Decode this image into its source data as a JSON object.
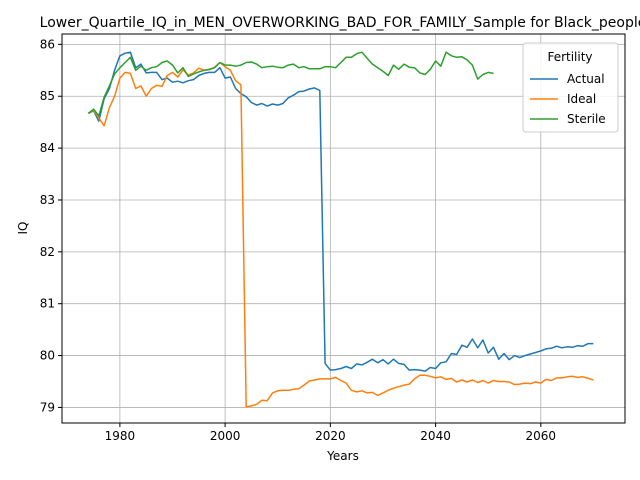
{
  "chart_data": {
    "type": "line",
    "title": "Lower_Quartile_IQ_in_MEN_OVERWORKING_BAD_FOR_FAMILY_Sample for Black_people",
    "xlabel": "Years",
    "ylabel": "IQ",
    "xlim": [
      1969,
      2076
    ],
    "ylim": [
      78.7,
      86.2
    ],
    "xticks": [
      1980,
      2000,
      2020,
      2040,
      2060
    ],
    "yticks": [
      79,
      80,
      81,
      82,
      83,
      84,
      85,
      86
    ],
    "grid": true,
    "legend": {
      "title": "Fertility",
      "placement": "top-right"
    },
    "series": [
      {
        "name": "Actual",
        "color": "#1f77b4",
        "points": [
          [
            1974,
            84.67
          ],
          [
            1975,
            84.72
          ],
          [
            1976,
            84.52
          ],
          [
            1977,
            84.95
          ],
          [
            1978,
            85.15
          ],
          [
            1979,
            85.5
          ],
          [
            1980,
            85.78
          ],
          [
            1981,
            85.83
          ],
          [
            1982,
            85.85
          ],
          [
            1983,
            85.55
          ],
          [
            1984,
            85.62
          ],
          [
            1985,
            85.45
          ],
          [
            1986,
            85.46
          ],
          [
            1987,
            85.46
          ],
          [
            1988,
            85.32
          ],
          [
            1989,
            85.35
          ],
          [
            1990,
            85.27
          ],
          [
            1991,
            85.29
          ],
          [
            1992,
            85.26
          ],
          [
            1993,
            85.3
          ],
          [
            1994,
            85.32
          ],
          [
            1995,
            85.4
          ],
          [
            1996,
            85.44
          ],
          [
            1997,
            85.46
          ],
          [
            1998,
            85.46
          ],
          [
            1999,
            85.55
          ],
          [
            2000,
            85.35
          ],
          [
            2001,
            85.37
          ],
          [
            2002,
            85.15
          ],
          [
            2003,
            85.05
          ],
          [
            2004,
            84.99
          ],
          [
            2005,
            84.88
          ],
          [
            2006,
            84.83
          ],
          [
            2007,
            84.86
          ],
          [
            2008,
            84.81
          ],
          [
            2009,
            84.85
          ],
          [
            2010,
            84.83
          ],
          [
            2011,
            84.86
          ],
          [
            2012,
            84.97
          ],
          [
            2013,
            85.02
          ],
          [
            2014,
            85.09
          ],
          [
            2015,
            85.1
          ],
          [
            2016,
            85.14
          ],
          [
            2017,
            85.16
          ],
          [
            2018,
            85.11
          ],
          [
            2019,
            79.85
          ],
          [
            2020,
            79.72
          ],
          [
            2021,
            79.73
          ],
          [
            2022,
            79.75
          ],
          [
            2023,
            79.79
          ],
          [
            2024,
            79.75
          ],
          [
            2025,
            79.84
          ],
          [
            2026,
            79.82
          ],
          [
            2027,
            79.87
          ],
          [
            2028,
            79.93
          ],
          [
            2029,
            79.86
          ],
          [
            2030,
            79.92
          ],
          [
            2031,
            79.84
          ],
          [
            2032,
            79.93
          ],
          [
            2033,
            79.85
          ],
          [
            2034,
            79.83
          ],
          [
            2035,
            79.72
          ],
          [
            2036,
            79.73
          ],
          [
            2037,
            79.72
          ],
          [
            2038,
            79.7
          ],
          [
            2039,
            79.77
          ],
          [
            2040,
            79.75
          ],
          [
            2041,
            79.86
          ],
          [
            2042,
            79.88
          ],
          [
            2043,
            80.04
          ],
          [
            2044,
            80.02
          ],
          [
            2045,
            80.2
          ],
          [
            2046,
            80.16
          ],
          [
            2047,
            80.32
          ],
          [
            2048,
            80.15
          ],
          [
            2049,
            80.3
          ],
          [
            2050,
            80.05
          ],
          [
            2051,
            80.16
          ],
          [
            2052,
            79.93
          ],
          [
            2053,
            80.04
          ],
          [
            2054,
            79.92
          ],
          [
            2055,
            80.0
          ],
          [
            2056,
            79.96
          ],
          [
            2057,
            80.0
          ],
          [
            2058,
            80.03
          ],
          [
            2059,
            80.06
          ],
          [
            2060,
            80.09
          ],
          [
            2061,
            80.13
          ],
          [
            2062,
            80.14
          ],
          [
            2063,
            80.18
          ],
          [
            2064,
            80.15
          ],
          [
            2065,
            80.17
          ],
          [
            2066,
            80.16
          ],
          [
            2067,
            80.19
          ],
          [
            2068,
            80.18
          ],
          [
            2069,
            80.23
          ],
          [
            2070,
            80.23
          ]
        ]
      },
      {
        "name": "Ideal",
        "color": "#ff7f0e",
        "points": [
          [
            1974,
            84.67
          ],
          [
            1975,
            84.73
          ],
          [
            1976,
            84.58
          ],
          [
            1977,
            84.43
          ],
          [
            1978,
            84.78
          ],
          [
            1979,
            85.0
          ],
          [
            1980,
            85.35
          ],
          [
            1981,
            85.46
          ],
          [
            1982,
            85.44
          ],
          [
            1983,
            85.15
          ],
          [
            1984,
            85.2
          ],
          [
            1985,
            85.0
          ],
          [
            1986,
            85.15
          ],
          [
            1987,
            85.21
          ],
          [
            1988,
            85.19
          ],
          [
            1989,
            85.4
          ],
          [
            1990,
            85.46
          ],
          [
            1991,
            85.37
          ],
          [
            1992,
            85.51
          ],
          [
            1993,
            85.41
          ],
          [
            1994,
            85.45
          ],
          [
            1995,
            85.54
          ],
          [
            1996,
            85.5
          ],
          [
            1997,
            85.51
          ],
          [
            1998,
            85.56
          ],
          [
            1999,
            85.65
          ],
          [
            2000,
            85.57
          ],
          [
            2001,
            85.5
          ],
          [
            2002,
            85.3
          ],
          [
            2003,
            85.22
          ],
          [
            2004,
            79.01
          ],
          [
            2005,
            79.03
          ],
          [
            2006,
            79.06
          ],
          [
            2007,
            79.14
          ],
          [
            2008,
            79.13
          ],
          [
            2009,
            79.28
          ],
          [
            2010,
            79.32
          ],
          [
            2011,
            79.33
          ],
          [
            2012,
            79.33
          ],
          [
            2013,
            79.35
          ],
          [
            2014,
            79.36
          ],
          [
            2015,
            79.43
          ],
          [
            2016,
            79.51
          ],
          [
            2017,
            79.53
          ],
          [
            2018,
            79.55
          ],
          [
            2019,
            79.55
          ],
          [
            2020,
            79.55
          ],
          [
            2021,
            79.58
          ],
          [
            2022,
            79.52
          ],
          [
            2023,
            79.47
          ],
          [
            2024,
            79.33
          ],
          [
            2025,
            79.3
          ],
          [
            2026,
            79.32
          ],
          [
            2027,
            79.28
          ],
          [
            2028,
            79.29
          ],
          [
            2029,
            79.23
          ],
          [
            2030,
            79.28
          ],
          [
            2031,
            79.33
          ],
          [
            2032,
            79.37
          ],
          [
            2033,
            79.4
          ],
          [
            2034,
            79.43
          ],
          [
            2035,
            79.45
          ],
          [
            2036,
            79.55
          ],
          [
            2037,
            79.62
          ],
          [
            2038,
            79.62
          ],
          [
            2039,
            79.6
          ],
          [
            2040,
            79.57
          ],
          [
            2041,
            79.59
          ],
          [
            2042,
            79.54
          ],
          [
            2043,
            79.56
          ],
          [
            2044,
            79.49
          ],
          [
            2045,
            79.53
          ],
          [
            2046,
            79.49
          ],
          [
            2047,
            79.53
          ],
          [
            2048,
            79.48
          ],
          [
            2049,
            79.52
          ],
          [
            2050,
            79.47
          ],
          [
            2051,
            79.52
          ],
          [
            2052,
            79.5
          ],
          [
            2053,
            79.5
          ],
          [
            2054,
            79.49
          ],
          [
            2055,
            79.44
          ],
          [
            2056,
            79.45
          ],
          [
            2057,
            79.47
          ],
          [
            2058,
            79.46
          ],
          [
            2059,
            79.49
          ],
          [
            2060,
            79.47
          ],
          [
            2061,
            79.54
          ],
          [
            2062,
            79.52
          ],
          [
            2063,
            79.57
          ],
          [
            2064,
            79.57
          ],
          [
            2065,
            79.59
          ],
          [
            2066,
            79.6
          ],
          [
            2067,
            79.58
          ],
          [
            2068,
            79.59
          ],
          [
            2069,
            79.56
          ],
          [
            2070,
            79.53
          ]
        ]
      },
      {
        "name": "Sterile",
        "color": "#2ca02c",
        "points": [
          [
            1974,
            84.67
          ],
          [
            1975,
            84.75
          ],
          [
            1976,
            84.62
          ],
          [
            1977,
            84.98
          ],
          [
            1978,
            85.2
          ],
          [
            1979,
            85.43
          ],
          [
            1980,
            85.55
          ],
          [
            1981,
            85.65
          ],
          [
            1982,
            85.75
          ],
          [
            1983,
            85.5
          ],
          [
            1984,
            85.58
          ],
          [
            1985,
            85.5
          ],
          [
            1986,
            85.55
          ],
          [
            1987,
            85.57
          ],
          [
            1988,
            85.65
          ],
          [
            1989,
            85.68
          ],
          [
            1990,
            85.6
          ],
          [
            1991,
            85.45
          ],
          [
            1992,
            85.55
          ],
          [
            1993,
            85.38
          ],
          [
            1994,
            85.43
          ],
          [
            1995,
            85.47
          ],
          [
            1996,
            85.5
          ],
          [
            1997,
            85.52
          ],
          [
            1998,
            85.55
          ],
          [
            1999,
            85.65
          ],
          [
            2000,
            85.6
          ],
          [
            2001,
            85.6
          ],
          [
            2002,
            85.58
          ],
          [
            2003,
            85.6
          ],
          [
            2004,
            85.65
          ],
          [
            2005,
            85.66
          ],
          [
            2006,
            85.62
          ],
          [
            2007,
            85.55
          ],
          [
            2008,
            85.57
          ],
          [
            2009,
            85.58
          ],
          [
            2010,
            85.56
          ],
          [
            2011,
            85.55
          ],
          [
            2012,
            85.6
          ],
          [
            2013,
            85.62
          ],
          [
            2014,
            85.55
          ],
          [
            2015,
            85.57
          ],
          [
            2016,
            85.53
          ],
          [
            2017,
            85.53
          ],
          [
            2018,
            85.53
          ],
          [
            2019,
            85.57
          ],
          [
            2020,
            85.57
          ],
          [
            2021,
            85.55
          ],
          [
            2022,
            85.65
          ],
          [
            2023,
            85.75
          ],
          [
            2024,
            85.75
          ],
          [
            2025,
            85.82
          ],
          [
            2026,
            85.85
          ],
          [
            2027,
            85.73
          ],
          [
            2028,
            85.62
          ],
          [
            2029,
            85.55
          ],
          [
            2030,
            85.48
          ],
          [
            2031,
            85.4
          ],
          [
            2032,
            85.6
          ],
          [
            2033,
            85.52
          ],
          [
            2034,
            85.62
          ],
          [
            2035,
            85.56
          ],
          [
            2036,
            85.55
          ],
          [
            2037,
            85.45
          ],
          [
            2038,
            85.42
          ],
          [
            2039,
            85.52
          ],
          [
            2040,
            85.68
          ],
          [
            2041,
            85.58
          ],
          [
            2042,
            85.85
          ],
          [
            2043,
            85.78
          ],
          [
            2044,
            85.75
          ],
          [
            2045,
            85.76
          ],
          [
            2046,
            85.7
          ],
          [
            2047,
            85.6
          ],
          [
            2048,
            85.33
          ],
          [
            2049,
            85.42
          ],
          [
            2050,
            85.46
          ],
          [
            2051,
            85.44
          ]
        ]
      }
    ]
  }
}
